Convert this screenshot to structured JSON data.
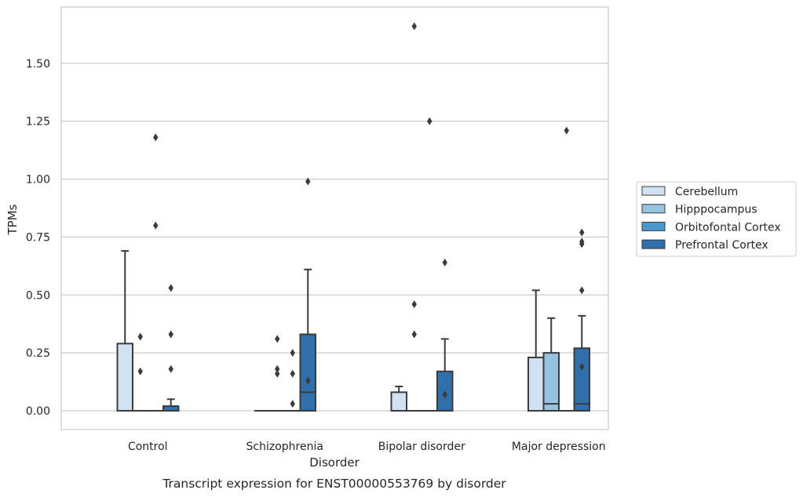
{
  "chart_data": {
    "type": "box",
    "title": "",
    "caption": "Transcript expression for ENST00000553769 by disorder",
    "xlabel": "Disorder",
    "ylabel": "TPMs",
    "ylim": [
      -0.08,
      1.75
    ],
    "yticks": [
      0.0,
      0.25,
      0.5,
      0.75,
      1.0,
      1.25,
      1.5
    ],
    "ytick_labels": [
      "0.00",
      "0.25",
      "0.50",
      "0.75",
      "1.00",
      "1.25",
      "1.50"
    ],
    "categories": [
      "Control",
      "Schizophrenia",
      "Bipolar disorder",
      "Major depression"
    ],
    "grid": "horizontal",
    "legend_position": "right",
    "series": [
      {
        "name": "Cerebellum",
        "color": "#d0e1f2",
        "boxes": [
          {
            "q1": 0.0,
            "median": 0.0,
            "q3": 0.29,
            "whisker_low": 0.0,
            "whisker_high": 0.69,
            "outliers": []
          },
          {
            "q1": 0.0,
            "median": 0.0,
            "q3": 0.0,
            "whisker_low": 0.0,
            "whisker_high": 0.0,
            "outliers": []
          },
          {
            "q1": 0.0,
            "median": 0.0,
            "q3": 0.08,
            "whisker_low": 0.0,
            "whisker_high": 0.105,
            "outliers": []
          },
          {
            "q1": 0.0,
            "median": 0.0,
            "q3": 0.23,
            "whisker_low": 0.0,
            "whisker_high": 0.52,
            "outliers": []
          }
        ]
      },
      {
        "name": "Hipppocampus",
        "color": "#94c4df",
        "boxes": [
          {
            "q1": 0.0,
            "median": 0.0,
            "q3": 0.0,
            "whisker_low": 0.0,
            "whisker_high": 0.0,
            "outliers": [
              0.17,
              0.32
            ]
          },
          {
            "q1": 0.0,
            "median": 0.0,
            "q3": 0.0,
            "whisker_low": 0.0,
            "whisker_high": 0.0,
            "outliers": [
              0.16,
              0.18,
              0.31
            ]
          },
          {
            "q1": 0.0,
            "median": 0.0,
            "q3": 0.0,
            "whisker_low": 0.0,
            "whisker_high": 0.0,
            "outliers": [
              0.33,
              0.46,
              1.66
            ]
          },
          {
            "q1": 0.0,
            "median": 0.03,
            "q3": 0.25,
            "whisker_low": 0.0,
            "whisker_high": 0.4,
            "outliers": []
          }
        ]
      },
      {
        "name": "Orbitofontal Cortex",
        "color": "#4a98c9",
        "boxes": [
          {
            "q1": 0.0,
            "median": 0.0,
            "q3": 0.0,
            "whisker_low": 0.0,
            "whisker_high": 0.0,
            "outliers": [
              0.8,
              1.18
            ]
          },
          {
            "q1": 0.0,
            "median": 0.0,
            "q3": 0.0,
            "whisker_low": 0.0,
            "whisker_high": 0.0,
            "outliers": [
              0.03,
              0.16,
              0.25
            ]
          },
          {
            "q1": 0.0,
            "median": 0.0,
            "q3": 0.0,
            "whisker_low": 0.0,
            "whisker_high": 0.0,
            "outliers": [
              1.25
            ]
          },
          {
            "q1": 0.0,
            "median": 0.0,
            "q3": 0.0,
            "whisker_low": 0.0,
            "whisker_high": 0.0,
            "outliers": [
              1.21
            ]
          }
        ]
      },
      {
        "name": "Prefrontal Cortex",
        "color": "#2e6fac",
        "boxes": [
          {
            "q1": 0.0,
            "median": 0.0,
            "q3": 0.02,
            "whisker_low": 0.0,
            "whisker_high": 0.05,
            "outliers": [
              0.18,
              0.33,
              0.53
            ]
          },
          {
            "q1": 0.0,
            "median": 0.08,
            "q3": 0.33,
            "whisker_low": 0.0,
            "whisker_high": 0.61,
            "outliers": [
              0.13,
              0.99
            ]
          },
          {
            "q1": 0.0,
            "median": 0.0,
            "q3": 0.17,
            "whisker_low": 0.0,
            "whisker_high": 0.31,
            "outliers": [
              0.07,
              0.64
            ]
          },
          {
            "q1": 0.0,
            "median": 0.03,
            "q3": 0.27,
            "whisker_low": 0.0,
            "whisker_high": 0.41,
            "outliers": [
              0.19,
              0.52,
              0.72,
              0.73,
              0.77
            ]
          }
        ]
      }
    ]
  }
}
